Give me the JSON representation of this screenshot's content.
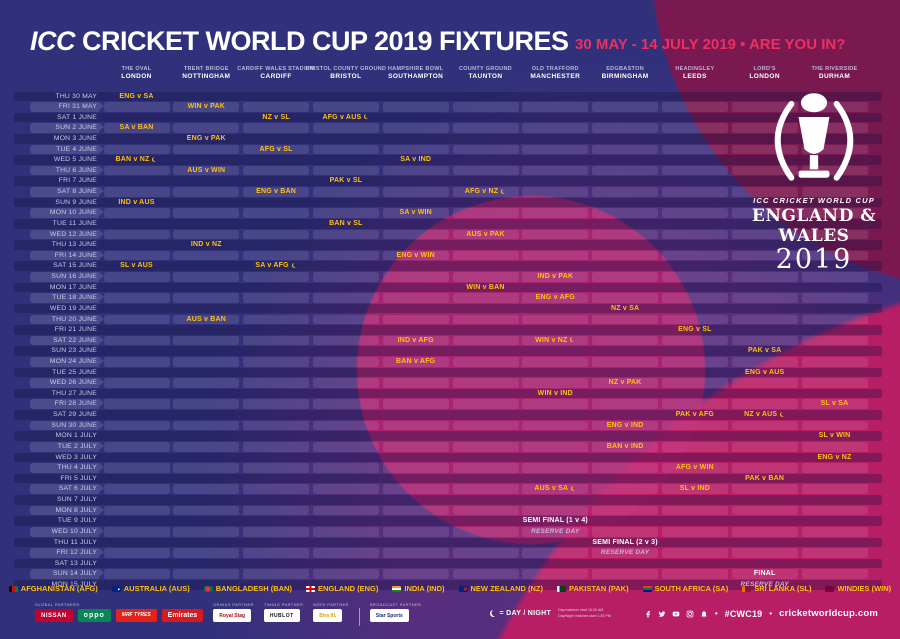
{
  "header": {
    "title_icc": "ICC",
    "title_rest": "CRICKET WORLD CUP 2019 FIXTURES",
    "subtitle": "30 MAY - 14 JULY 2019 • ARE YOU IN?"
  },
  "colors": {
    "background": "#31317B",
    "magenta": "#B81E66",
    "maroon": "#80164D",
    "gold": "#FFC10E",
    "subtitle_pink": "#ED3060"
  },
  "venues": [
    {
      "stadium": "THE OVAL",
      "city": "LONDON"
    },
    {
      "stadium": "TRENT BRIDGE",
      "city": "NOTTINGHAM"
    },
    {
      "stadium": "CARDIFF WALES STADIUM",
      "city": "CARDIFF"
    },
    {
      "stadium": "BRISTOL COUNTY GROUND",
      "city": "BRISTOL"
    },
    {
      "stadium": "HAMPSHIRE BOWL",
      "city": "SOUTHAMPTON"
    },
    {
      "stadium": "COUNTY GROUND",
      "city": "TAUNTON"
    },
    {
      "stadium": "OLD TRAFFORD",
      "city": "MANCHESTER"
    },
    {
      "stadium": "EDGBASTON",
      "city": "BIRMINGHAM"
    },
    {
      "stadium": "HEADINGLEY",
      "city": "LEEDS"
    },
    {
      "stadium": "LORD'S",
      "city": "LONDON"
    },
    {
      "stadium": "THE RIVERSIDE",
      "city": "DURHAM"
    }
  ],
  "schedule": [
    {
      "date": "THU 30 MAY",
      "matches": [
        {
          "venue": 0,
          "label": "ENG v SA"
        }
      ]
    },
    {
      "date": "FRI 31 MAY",
      "matches": [
        {
          "venue": 1,
          "label": "WIN v PAK"
        }
      ]
    },
    {
      "date": "SAT 1 JUNE",
      "matches": [
        {
          "venue": 2,
          "label": "NZ v SL"
        },
        {
          "venue": 3,
          "label": "AFG v AUS",
          "daynight": true
        }
      ]
    },
    {
      "date": "SUN 2 JUNE",
      "matches": [
        {
          "venue": 0,
          "label": "SA v BAN"
        }
      ]
    },
    {
      "date": "MON 3 JUNE",
      "matches": [
        {
          "venue": 1,
          "label": "ENG v PAK"
        }
      ]
    },
    {
      "date": "TUE 4 JUNE",
      "matches": [
        {
          "venue": 2,
          "label": "AFG v SL"
        }
      ]
    },
    {
      "date": "WED 5 JUNE",
      "matches": [
        {
          "venue": 0,
          "label": "BAN v NZ",
          "daynight": true
        },
        {
          "venue": 4,
          "label": "SA v IND"
        }
      ]
    },
    {
      "date": "THU 6 JUNE",
      "matches": [
        {
          "venue": 1,
          "label": "AUS v WIN"
        }
      ]
    },
    {
      "date": "FRI 7 JUNE",
      "matches": [
        {
          "venue": 3,
          "label": "PAK v SL"
        }
      ]
    },
    {
      "date": "SAT 8 JUNE",
      "matches": [
        {
          "venue": 2,
          "label": "ENG v BAN"
        },
        {
          "venue": 5,
          "label": "AFG v NZ",
          "daynight": true
        }
      ]
    },
    {
      "date": "SUN 9 JUNE",
      "matches": [
        {
          "venue": 0,
          "label": "IND v AUS"
        }
      ]
    },
    {
      "date": "MON 10 JUNE",
      "matches": [
        {
          "venue": 4,
          "label": "SA v WIN"
        }
      ]
    },
    {
      "date": "TUE 11 JUNE",
      "matches": [
        {
          "venue": 3,
          "label": "BAN v SL"
        }
      ]
    },
    {
      "date": "WED 12 JUNE",
      "matches": [
        {
          "venue": 5,
          "label": "AUS v PAK"
        }
      ]
    },
    {
      "date": "THU 13 JUNE",
      "matches": [
        {
          "venue": 1,
          "label": "IND v NZ"
        }
      ]
    },
    {
      "date": "FRI 14 JUNE",
      "matches": [
        {
          "venue": 4,
          "label": "ENG v WIN"
        }
      ]
    },
    {
      "date": "SAT 15 JUNE",
      "matches": [
        {
          "venue": 0,
          "label": "SL v AUS"
        },
        {
          "venue": 2,
          "label": "SA v AFG",
          "daynight": true
        }
      ]
    },
    {
      "date": "SUN 16 JUNE",
      "matches": [
        {
          "venue": 6,
          "label": "IND v PAK"
        }
      ]
    },
    {
      "date": "MON 17 JUNE",
      "matches": [
        {
          "venue": 5,
          "label": "WIN v BAN"
        }
      ]
    },
    {
      "date": "TUE 18 JUNE",
      "matches": [
        {
          "venue": 6,
          "label": "ENG v AFG"
        }
      ]
    },
    {
      "date": "WED 19 JUNE",
      "matches": [
        {
          "venue": 7,
          "label": "NZ v SA"
        }
      ]
    },
    {
      "date": "THU 20 JUNE",
      "matches": [
        {
          "venue": 1,
          "label": "AUS v BAN"
        }
      ]
    },
    {
      "date": "FRI 21 JUNE",
      "matches": [
        {
          "venue": 8,
          "label": "ENG v SL"
        }
      ]
    },
    {
      "date": "SAT 22 JUNE",
      "matches": [
        {
          "venue": 4,
          "label": "IND v AFG"
        },
        {
          "venue": 6,
          "label": "WIN v NZ",
          "daynight": true
        }
      ]
    },
    {
      "date": "SUN 23 JUNE",
      "matches": [
        {
          "venue": 9,
          "label": "PAK v SA"
        }
      ]
    },
    {
      "date": "MON 24 JUNE",
      "matches": [
        {
          "venue": 4,
          "label": "BAN v AFG"
        }
      ]
    },
    {
      "date": "TUE 25 JUNE",
      "matches": [
        {
          "venue": 9,
          "label": "ENG v AUS"
        }
      ]
    },
    {
      "date": "WED 26 JUNE",
      "matches": [
        {
          "venue": 7,
          "label": "NZ v PAK"
        }
      ]
    },
    {
      "date": "THU 27 JUNE",
      "matches": [
        {
          "venue": 6,
          "label": "WIN v IND"
        }
      ]
    },
    {
      "date": "FRI 28 JUNE",
      "matches": [
        {
          "venue": 10,
          "label": "SL v SA"
        }
      ]
    },
    {
      "date": "SAT 29 JUNE",
      "matches": [
        {
          "venue": 8,
          "label": "PAK v AFG"
        },
        {
          "venue": 9,
          "label": "NZ v AUS",
          "daynight": true
        }
      ]
    },
    {
      "date": "SUN 30 JUNE",
      "matches": [
        {
          "venue": 7,
          "label": "ENG v IND"
        }
      ]
    },
    {
      "date": "MON 1 JULY",
      "matches": [
        {
          "venue": 10,
          "label": "SL v WIN"
        }
      ]
    },
    {
      "date": "TUE 2 JULY",
      "matches": [
        {
          "venue": 7,
          "label": "BAN v IND"
        }
      ]
    },
    {
      "date": "WED 3 JULY",
      "matches": [
        {
          "venue": 10,
          "label": "ENG v NZ"
        }
      ]
    },
    {
      "date": "THU 4 JULY",
      "matches": [
        {
          "venue": 8,
          "label": "AFG v WIN"
        }
      ]
    },
    {
      "date": "FRI 5 JULY",
      "matches": [
        {
          "venue": 9,
          "label": "PAK v BAN"
        }
      ]
    },
    {
      "date": "SAT 6 JULY",
      "matches": [
        {
          "venue": 6,
          "label": "AUS v SA",
          "daynight": true
        },
        {
          "venue": 8,
          "label": "SL v IND"
        }
      ]
    },
    {
      "date": "SUN 7 JULY",
      "matches": []
    },
    {
      "date": "MON 8 JULY",
      "matches": []
    },
    {
      "date": "TUE 9 JULY",
      "matches": [
        {
          "venue": 6,
          "label": "SEMI FINAL (1 v 4)",
          "type": "special"
        }
      ]
    },
    {
      "date": "WED 10 JULY",
      "matches": [
        {
          "venue": 6,
          "label": "RESERVE DAY",
          "type": "reserve"
        }
      ]
    },
    {
      "date": "THU 11 JULY",
      "matches": [
        {
          "venue": 7,
          "label": "SEMI FINAL (2 v 3)",
          "type": "special"
        }
      ]
    },
    {
      "date": "FRI 12 JULY",
      "matches": [
        {
          "venue": 7,
          "label": "RESERVE DAY",
          "type": "reserve"
        }
      ]
    },
    {
      "date": "SAT 13 JULY",
      "matches": []
    },
    {
      "date": "SUN 14 JULY",
      "matches": [
        {
          "venue": 9,
          "label": "FINAL",
          "type": "special"
        }
      ]
    },
    {
      "date": "MON 15 JULY",
      "matches": [
        {
          "venue": 9,
          "label": "RESERVE DAY",
          "type": "reserve"
        }
      ]
    }
  ],
  "logo": {
    "line1": "ICC CRICKET WORLD CUP",
    "line2": "ENGLAND & WALES",
    "line3": "2019"
  },
  "legend": [
    {
      "flag": "afg",
      "label": "AFGHANISTAN (AFG)"
    },
    {
      "flag": "aus",
      "label": "AUSTRALIA (AUS)"
    },
    {
      "flag": "ban",
      "label": "BANGLADESH (BAN)"
    },
    {
      "flag": "eng",
      "label": "ENGLAND (ENG)"
    },
    {
      "flag": "ind",
      "label": "INDIA (IND)"
    },
    {
      "flag": "nz",
      "label": "NEW ZEALAND (NZ)"
    },
    {
      "flag": "pak",
      "label": "PAKISTAN (PAK)"
    },
    {
      "flag": "sa",
      "label": "SOUTH AFRICA (SA)"
    },
    {
      "flag": "sl",
      "label": "SRI LANKA (SL)"
    },
    {
      "flag": "win",
      "label": "WINDIES (WIN)"
    }
  ],
  "footer": {
    "partner_groups": [
      {
        "label": "GLOBAL PARTNERS",
        "logos": [
          {
            "text": "NISSAN",
            "style": "nissan"
          },
          {
            "text": "oppo",
            "style": "oppo"
          },
          {
            "text": "MRF TYRES",
            "style": "mrf"
          },
          {
            "text": "Emirates",
            "style": "emirates"
          }
        ]
      },
      {
        "label": "DRINKS PARTNER",
        "logos": [
          {
            "text": "Royal Stag",
            "style": "white-red"
          }
        ]
      },
      {
        "label": "TIMING PARTNER",
        "logos": [
          {
            "text": "HUBLOT",
            "style": "white-black"
          }
        ]
      },
      {
        "label": "BEER PARTNER",
        "logos": [
          {
            "text": "Bira 91",
            "style": "white-gold"
          }
        ]
      },
      {
        "label": "BROADCAST PARTNER",
        "divider_before": true,
        "logos": [
          {
            "text": "Star Sports",
            "style": "white-blue"
          }
        ]
      }
    ],
    "daynight_label": "= DAY / NIGHT",
    "daynight_note1": "Day matches start 10:30 AM",
    "daynight_note2": "Day/Night matches start 1:30 PM",
    "social": [
      "facebook",
      "twitter",
      "youtube",
      "instagram",
      "notifications"
    ],
    "hashtag": "#CWC19",
    "website": "cricketworldcup.com"
  }
}
